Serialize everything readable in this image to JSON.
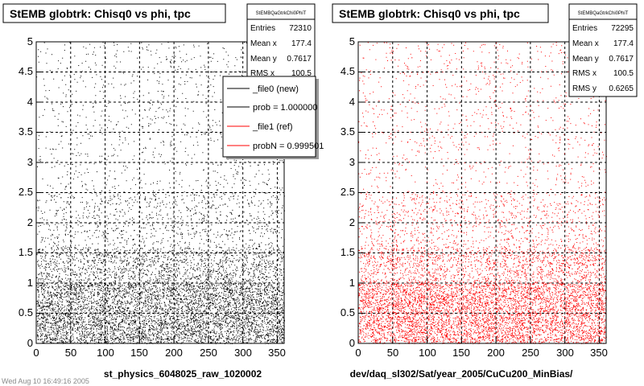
{
  "chart_data": [
    {
      "type": "scatter",
      "title": "StEMB globtrk: Chisq0 vs phi, tpc",
      "stats_box": {
        "name": "StEMBQaGtrkChi0PhiT",
        "entries_label": "Entries",
        "entries": "72310",
        "meanx_label": "Mean x",
        "meanx": "177.4",
        "meany_label": "Mean y",
        "meany": "0.7617",
        "rmsx_label": "RMS x",
        "rmsx": "100.5"
      },
      "legend": [
        {
          "label": "_file0 (new)",
          "color": "#000000"
        },
        {
          "label": "prob = 1.000000",
          "color": "#000000"
        },
        {
          "label": "_file1 (ref)",
          "color": "#ff0000"
        },
        {
          "label": "probN = 0.999501",
          "color": "#ff0000"
        }
      ],
      "xlabel": "st_physics_6048025_raw_1020002",
      "xlim": [
        0,
        360
      ],
      "ylim": [
        0,
        5
      ],
      "xticks": [
        "0",
        "50",
        "100",
        "150",
        "200",
        "250",
        "300",
        "350"
      ],
      "yticks": [
        "0",
        "0.5",
        "1",
        "1.5",
        "2",
        "2.5",
        "3",
        "3.5",
        "4",
        "4.5",
        "5"
      ],
      "grid": true,
      "point_color": "#000000"
    },
    {
      "type": "scatter",
      "title": "StEMB globtrk: Chisq0 vs phi, tpc",
      "stats_box": {
        "name": "StEMBQaGtrkChi0PhiT",
        "entries_label": "Entries",
        "entries": "72295",
        "meanx_label": "Mean x",
        "meanx": "177.4",
        "meany_label": "Mean y",
        "meany": "0.7617",
        "rmsx_label": "RMS x",
        "rmsx": "100.5",
        "rmsy_label": "RMS y",
        "rmsy": "0.6265"
      },
      "xlabel": "dev/daq_sl302/Sat/year_2005/CuCu200_MinBias/",
      "xlim": [
        0,
        360
      ],
      "ylim": [
        0,
        5
      ],
      "xticks": [
        "0",
        "50",
        "100",
        "150",
        "200",
        "250",
        "300",
        "350"
      ],
      "yticks": [
        "0",
        "0.5",
        "1",
        "1.5",
        "2",
        "2.5",
        "3",
        "3.5",
        "4",
        "4.5",
        "5"
      ],
      "grid": true,
      "point_color": "#ff0000"
    }
  ],
  "footer": "Wed Aug 10 16:49:16 2005"
}
